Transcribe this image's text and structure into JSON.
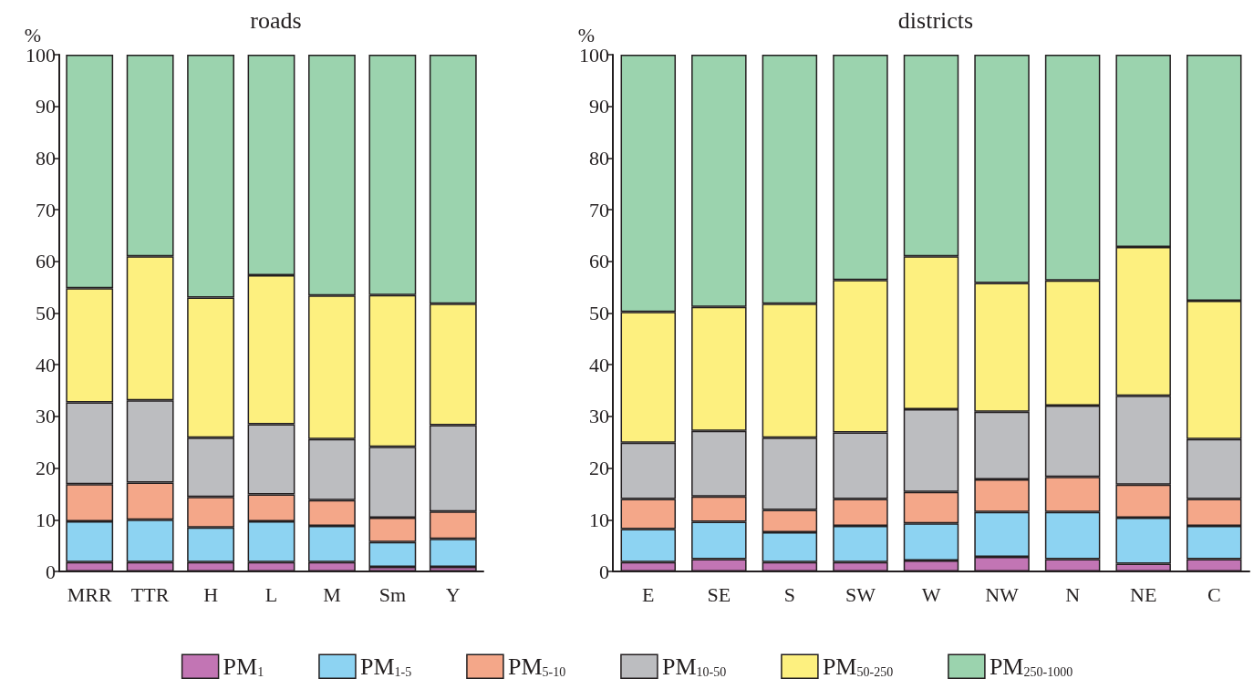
{
  "chart_data": [
    {
      "type": "bar",
      "title": "roads",
      "ylabel": "%",
      "stacked": true,
      "grid": false,
      "legend": "bottom",
      "ylim": [
        0,
        100
      ],
      "yticks": [
        0,
        10,
        20,
        30,
        40,
        50,
        60,
        70,
        80,
        90,
        100
      ],
      "categories": [
        "MRR",
        "TTR",
        "H",
        "L",
        "M",
        "Sm",
        "Y"
      ],
      "series": [
        {
          "name": "PM$_{1}$",
          "color": "#c275b4",
          "values": [
            1.8,
            1.8,
            1.8,
            1.8,
            1.8,
            0.9,
            0.9
          ]
        },
        {
          "name": "PM$_{1-5}$",
          "color": "#8dd3f2",
          "values": [
            7.9,
            8.2,
            6.7,
            7.9,
            7.0,
            4.8,
            5.4
          ]
        },
        {
          "name": "PM$_{5-10}$",
          "color": "#f4a789",
          "values": [
            7.2,
            7.2,
            5.9,
            5.2,
            5.0,
            4.7,
            5.3
          ]
        },
        {
          "name": "PM$_{10-50}$",
          "color": "#bcbdc0",
          "values": [
            15.8,
            15.9,
            11.5,
            13.6,
            11.8,
            13.7,
            16.7
          ]
        },
        {
          "name": "PM$_{50-250}$",
          "color": "#fdf07f",
          "values": [
            22.1,
            27.9,
            27.1,
            28.8,
            27.8,
            29.4,
            23.5
          ]
        },
        {
          "name": "PM$_{250-1000}$",
          "color": "#9bd3ae",
          "values": [
            45.2,
            39.0,
            47.0,
            42.7,
            46.6,
            46.5,
            48.2
          ]
        }
      ]
    },
    {
      "type": "bar",
      "title": "districts",
      "ylabel": "%",
      "stacked": true,
      "grid": false,
      "ylim": [
        0,
        100
      ],
      "yticks": [
        0,
        10,
        20,
        30,
        40,
        50,
        60,
        70,
        80,
        90,
        100
      ],
      "categories": [
        "E",
        "SE",
        "S",
        "SW",
        "W",
        "NW",
        "N",
        "NE",
        "C"
      ],
      "series": [
        {
          "color": "#c275b4",
          "values": [
            1.8,
            2.4,
            1.8,
            1.8,
            2.1,
            2.8,
            2.4,
            1.5,
            2.4
          ]
        },
        {
          "color": "#8dd3f2",
          "values": [
            6.4,
            7.2,
            5.8,
            7.0,
            7.2,
            8.7,
            9.1,
            8.9,
            6.4
          ]
        },
        {
          "color": "#f4a789",
          "values": [
            5.8,
            4.9,
            4.3,
            5.2,
            6.1,
            6.3,
            6.8,
            6.4,
            5.2
          ]
        },
        {
          "color": "#bcbdc0",
          "values": [
            10.9,
            12.7,
            14.0,
            12.9,
            16.0,
            13.1,
            13.8,
            17.2,
            11.6
          ]
        },
        {
          "color": "#fdf07f",
          "values": [
            25.3,
            24.0,
            25.9,
            29.5,
            29.6,
            24.9,
            24.2,
            28.8,
            26.8
          ]
        },
        {
          "color": "#9bd3ae",
          "values": [
            49.8,
            48.8,
            48.2,
            43.6,
            39.0,
            44.2,
            43.7,
            37.2,
            47.6
          ]
        }
      ]
    }
  ]
}
